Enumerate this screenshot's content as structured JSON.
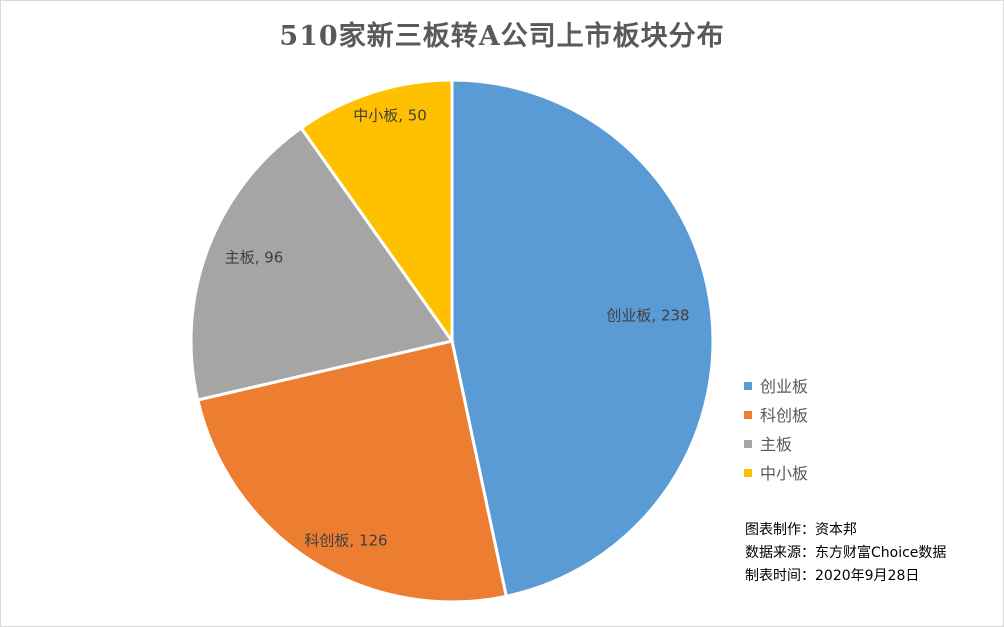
{
  "chart_data": {
    "type": "pie",
    "title": "510家新三板转A公司上市板块分布",
    "categories": [
      "创业板",
      "科创板",
      "主板",
      "中小板"
    ],
    "values": [
      238,
      126,
      96,
      50
    ],
    "colors": [
      "#5B9BD5",
      "#ED7D31",
      "#A5A5A5",
      "#FFC000"
    ],
    "data_labels": [
      "创业板, 238",
      "科创板, 126",
      "主板, 96",
      "中小板, 50"
    ],
    "start_angle": "12 o'clock",
    "direction": "clockwise",
    "legend": {
      "position": "right",
      "items": [
        "创业板",
        "科创板",
        "主板",
        "中小板"
      ]
    }
  },
  "notes": {
    "line1": "图表制作：资本邦",
    "line2": "数据来源：东方财富Choice数据",
    "line3": "制表时间：2020年9月28日"
  }
}
